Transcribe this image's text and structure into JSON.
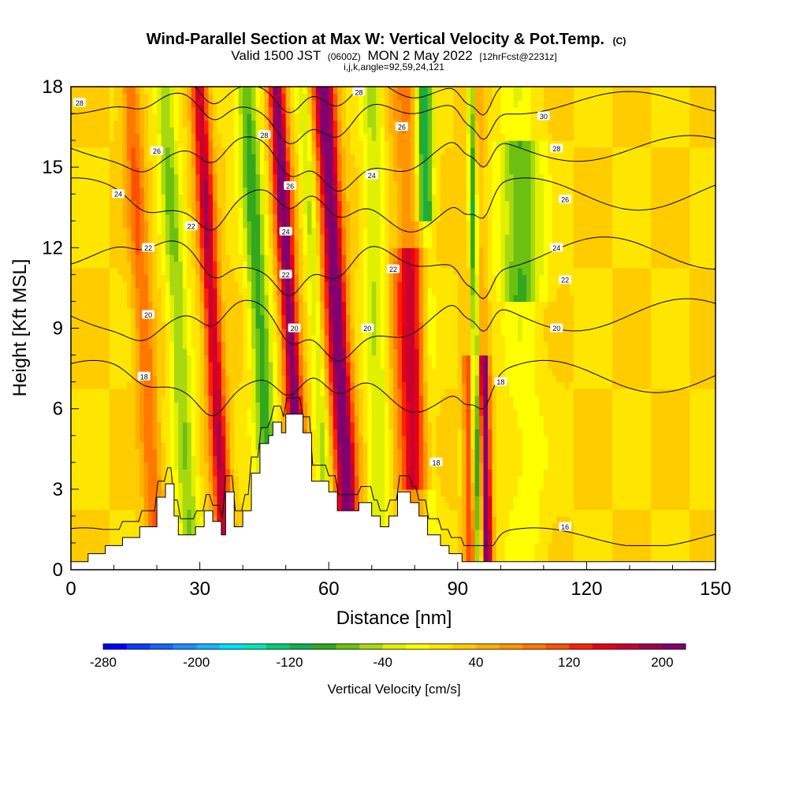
{
  "chart_data": {
    "type": "heatmap",
    "title": "Wind-Parallel Section at Max W: Vertical Velocity & Pot.Temp.",
    "title_mark": "(C)",
    "subtitle_parts": [
      "Valid 1500 JST",
      "(0600Z)",
      "MON 2 May 2022",
      "[12hrFcst@2231z]"
    ],
    "subtitle2": "i,j,k,angle=92,59,24,121",
    "xlabel": "Distance [nm]",
    "ylabel": "Height [Kft MSL]",
    "xlim": [
      0,
      150
    ],
    "ylim": [
      0,
      18
    ],
    "x_ticks": [
      0,
      30,
      60,
      90,
      120,
      150
    ],
    "y_ticks": [
      0,
      3,
      6,
      9,
      12,
      15,
      18
    ],
    "colorbar": {
      "label": "Vertical Velocity [cm/s]",
      "min": -280,
      "max": 220,
      "step": 20,
      "tick_values": [
        -280,
        -200,
        -120,
        -40,
        40,
        120,
        200
      ],
      "colors": [
        "#0000ff",
        "#0a3cff",
        "#1464ff",
        "#1e8cff",
        "#14b4ff",
        "#00e0ff",
        "#00e6b4",
        "#00cc78",
        "#10b050",
        "#30a820",
        "#6cc010",
        "#a8d810",
        "#e0f000",
        "#ffff00",
        "#ffe600",
        "#ffcc00",
        "#ffb000",
        "#ff9600",
        "#ff7800",
        "#ff5000",
        "#ff2000",
        "#e60018",
        "#c80030",
        "#a00050",
        "#800070"
      ]
    },
    "updraft_bands": [
      {
        "x": 17,
        "w": 2.2,
        "amp": 80
      },
      {
        "x": 33,
        "w": 2.0,
        "amp": 160
      },
      {
        "x": 51,
        "w": 2.0,
        "amp": 200
      },
      {
        "x": 62,
        "w": 2.5,
        "amp": 210
      },
      {
        "x": 79,
        "w": 3.5,
        "amp": 150
      },
      {
        "x": 96,
        "w": 1.2,
        "amp": 200
      },
      {
        "x": 92,
        "w": 1.0,
        "amp": 100
      }
    ],
    "downdraft_bands": [
      {
        "x": 25,
        "w": 2.5,
        "amp": -80
      },
      {
        "x": 44,
        "w": 2.5,
        "amp": -110
      },
      {
        "x": 57,
        "w": 1.5,
        "amp": -60
      },
      {
        "x": 71,
        "w": 2.5,
        "amp": -60
      },
      {
        "x": 83,
        "w": 2.0,
        "amp": -150
      },
      {
        "x": 94,
        "w": 0.8,
        "amp": -110
      },
      {
        "x": 105,
        "w": 5.0,
        "amp": -100
      }
    ],
    "terrain": [
      [
        0,
        0.3
      ],
      [
        4,
        0.3
      ],
      [
        4,
        0.6
      ],
      [
        8,
        0.6
      ],
      [
        8,
        0.9
      ],
      [
        12,
        0.9
      ],
      [
        12,
        1.2
      ],
      [
        16,
        1.2
      ],
      [
        16,
        1.6
      ],
      [
        20,
        1.6
      ],
      [
        20,
        2.7
      ],
      [
        22,
        2.7
      ],
      [
        22,
        3.2
      ],
      [
        24,
        3.2
      ],
      [
        24,
        2.0
      ],
      [
        25,
        2.0
      ],
      [
        25,
        1.3
      ],
      [
        29,
        1.3
      ],
      [
        29,
        1.6
      ],
      [
        31,
        1.6
      ],
      [
        31,
        2.2
      ],
      [
        33,
        2.2
      ],
      [
        33,
        1.8
      ],
      [
        35,
        1.8
      ],
      [
        35,
        1.3
      ],
      [
        36,
        1.3
      ],
      [
        36,
        2.9
      ],
      [
        38,
        2.9
      ],
      [
        38,
        1.6
      ],
      [
        40,
        1.6
      ],
      [
        40,
        2.2
      ],
      [
        42,
        2.2
      ],
      [
        42,
        3.6
      ],
      [
        44,
        3.6
      ],
      [
        44,
        4.7
      ],
      [
        46,
        4.7
      ],
      [
        46,
        5.0
      ],
      [
        47,
        5.0
      ],
      [
        47,
        5.5
      ],
      [
        49,
        5.5
      ],
      [
        49,
        5.1
      ],
      [
        50,
        5.1
      ],
      [
        50,
        5.8
      ],
      [
        54,
        5.8
      ],
      [
        54,
        5.1
      ],
      [
        56,
        5.1
      ],
      [
        56,
        3.3
      ],
      [
        60,
        3.3
      ],
      [
        60,
        2.9
      ],
      [
        62,
        2.9
      ],
      [
        62,
        2.2
      ],
      [
        67,
        2.2
      ],
      [
        67,
        2.5
      ],
      [
        70,
        2.5
      ],
      [
        70,
        2.0
      ],
      [
        72,
        2.0
      ],
      [
        72,
        1.6
      ],
      [
        74,
        1.6
      ],
      [
        74,
        2.0
      ],
      [
        76,
        2.0
      ],
      [
        76,
        2.9
      ],
      [
        79,
        2.9
      ],
      [
        79,
        2.5
      ],
      [
        81,
        2.5
      ],
      [
        81,
        2.0
      ],
      [
        83,
        2.0
      ],
      [
        83,
        1.3
      ],
      [
        86,
        1.3
      ],
      [
        86,
        0.9
      ],
      [
        88,
        0.9
      ],
      [
        88,
        0.6
      ],
      [
        91,
        0.6
      ],
      [
        91,
        0.3
      ],
      [
        150,
        0.3
      ]
    ],
    "theta_contours": [
      {
        "label": "16",
        "y0": 1.2,
        "amp": 0.6,
        "labels": [
          [
            115,
            1.6
          ]
        ]
      },
      {
        "label": "18",
        "y0": 7.2,
        "amp": 1.0,
        "labels": [
          [
            17,
            7.2
          ],
          [
            85,
            4.0
          ],
          [
            100,
            7.0
          ]
        ]
      },
      {
        "label": "20",
        "y0": 9.5,
        "amp": 1.0,
        "labels": [
          [
            18,
            9.5
          ],
          [
            52,
            9.0
          ],
          [
            69,
            9.0
          ],
          [
            113,
            9.0
          ]
        ]
      },
      {
        "label": "22",
        "y0": 11.8,
        "amp": 1.0,
        "labels": [
          [
            18,
            12.0
          ],
          [
            28,
            12.8
          ],
          [
            50,
            11.0
          ],
          [
            75,
            11.2
          ],
          [
            115,
            10.8
          ]
        ]
      },
      {
        "label": "24",
        "y0": 14.0,
        "amp": 1.0,
        "labels": [
          [
            11,
            14.0
          ],
          [
            50,
            12.6
          ],
          [
            70,
            14.7
          ],
          [
            113,
            12.0
          ]
        ]
      },
      {
        "label": "26",
        "y0": 15.7,
        "amp": 0.8,
        "labels": [
          [
            20,
            15.6
          ],
          [
            51,
            14.3
          ],
          [
            77,
            16.5
          ],
          [
            115,
            13.8
          ]
        ]
      },
      {
        "label": "28",
        "y0": 17.4,
        "amp": 0.7,
        "labels": [
          [
            2,
            17.4
          ],
          [
            45,
            16.2
          ],
          [
            67,
            17.8
          ],
          [
            113,
            15.7
          ]
        ]
      },
      {
        "label": "30",
        "y0": 18.3,
        "amp": 0.4,
        "labels": [
          [
            110,
            16.9
          ]
        ]
      }
    ]
  }
}
